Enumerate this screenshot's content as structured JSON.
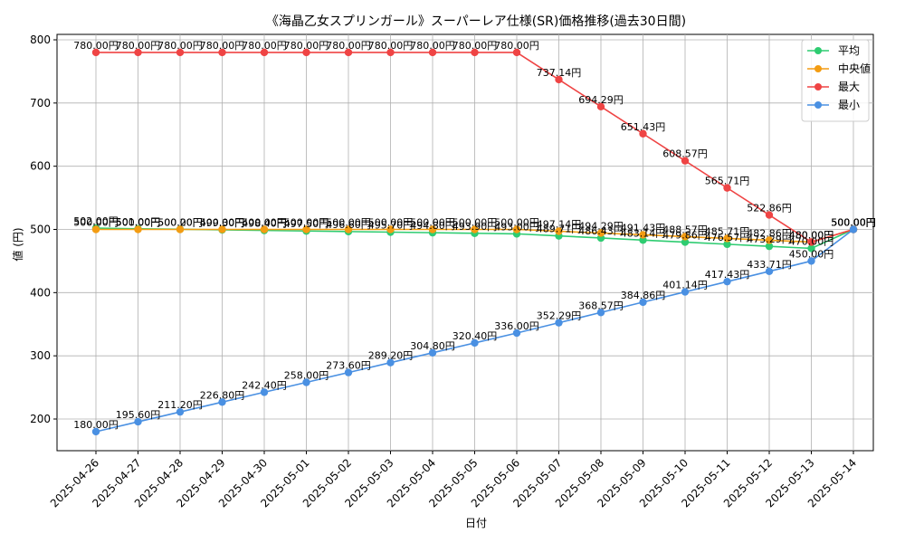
{
  "chart_data": {
    "type": "line",
    "title": "《海晶乙女スプリンガール》スーパーレア仕様(SR)価格推移(過去30日間)",
    "xlabel": "日付",
    "ylabel": "値 (円)",
    "ylim": [
      150,
      810
    ],
    "yticks": [
      200,
      300,
      400,
      500,
      600,
      700,
      800
    ],
    "grid": true,
    "legend_position": "top-right",
    "categories": [
      "2025-04-26",
      "2025-04-27",
      "2025-04-28",
      "2025-04-29",
      "2025-04-30",
      "2025-05-01",
      "2025-05-02",
      "2025-05-03",
      "2025-05-04",
      "2025-05-05",
      "2025-05-06",
      "2025-05-07",
      "2025-05-08",
      "2025-05-09",
      "2025-05-10",
      "2025-05-11",
      "2025-05-12",
      "2025-05-13",
      "2025-05-14"
    ],
    "series": [
      {
        "name": "平均",
        "color": "#2ecc71",
        "values": [
          502.0,
          501.0,
          500.2,
          499.3,
          498.4,
          497.5,
          496.6,
          495.7,
          494.8,
          493.9,
          493.0,
          489.71,
          486.43,
          483.14,
          479.86,
          476.57,
          473.29,
          470.0,
          500.0
        ]
      },
      {
        "name": "中央値",
        "color": "#f39c12",
        "values": [
          500.0,
          500.0,
          500.0,
          500.0,
          500.0,
          500.0,
          500.0,
          500.0,
          500.0,
          500.0,
          500.0,
          497.14,
          494.29,
          491.43,
          488.57,
          485.71,
          482.86,
          480.0,
          500.0
        ]
      },
      {
        "name": "最大",
        "color": "#ef4444",
        "values": [
          780.0,
          780.0,
          780.0,
          780.0,
          780.0,
          780.0,
          780.0,
          780.0,
          780.0,
          780.0,
          780.0,
          737.14,
          694.29,
          651.43,
          608.57,
          565.71,
          522.86,
          480.0,
          500.0
        ]
      },
      {
        "name": "最小",
        "color": "#4a90e2",
        "values": [
          180.0,
          195.6,
          211.2,
          226.8,
          242.4,
          258.0,
          273.6,
          289.2,
          304.8,
          320.4,
          336.0,
          352.29,
          368.57,
          384.86,
          401.14,
          417.43,
          433.71,
          450.0,
          500.0
        ]
      }
    ],
    "value_suffix": "円"
  }
}
